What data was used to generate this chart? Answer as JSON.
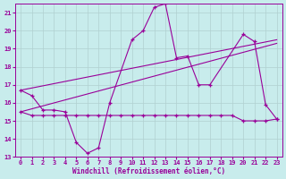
{
  "xlabel": "Windchill (Refroidissement éolien,°C)",
  "bg_color": "#c8ecec",
  "grid_color": "#b0d0d0",
  "line_color": "#990099",
  "xlim": [
    -0.5,
    23.5
  ],
  "ylim": [
    13,
    21.5
  ],
  "yticks": [
    13,
    14,
    15,
    16,
    17,
    18,
    19,
    20,
    21
  ],
  "xticks": [
    0,
    1,
    2,
    3,
    4,
    5,
    6,
    7,
    8,
    9,
    10,
    11,
    12,
    13,
    14,
    15,
    16,
    17,
    18,
    19,
    20,
    21,
    22,
    23
  ],
  "series1_x": [
    0,
    1,
    2,
    3,
    4,
    5,
    6,
    7,
    8,
    10,
    11,
    12,
    13,
    14,
    15,
    16,
    17,
    20,
    21,
    22,
    23
  ],
  "series1_y": [
    16.7,
    16.4,
    15.6,
    15.6,
    15.5,
    13.8,
    13.2,
    13.5,
    16.0,
    19.5,
    20.0,
    21.3,
    21.5,
    18.5,
    18.6,
    17.0,
    17.0,
    19.8,
    19.4,
    15.9,
    15.1
  ],
  "series2_x": [
    0,
    1,
    2,
    3,
    4,
    5,
    6,
    7,
    8,
    9,
    10,
    11,
    12,
    13,
    14,
    15,
    16,
    17,
    18,
    19,
    20,
    21,
    22,
    23
  ],
  "series2_y": [
    15.5,
    15.3,
    15.3,
    15.3,
    15.3,
    15.3,
    15.3,
    15.3,
    15.3,
    15.3,
    15.3,
    15.3,
    15.3,
    15.3,
    15.3,
    15.3,
    15.3,
    15.3,
    15.3,
    15.3,
    15.0,
    15.0,
    15.0,
    15.1
  ],
  "series3_x": [
    0,
    23
  ],
  "series3_y": [
    15.5,
    19.3
  ],
  "series4_x": [
    0,
    23
  ],
  "series4_y": [
    16.7,
    19.5
  ]
}
